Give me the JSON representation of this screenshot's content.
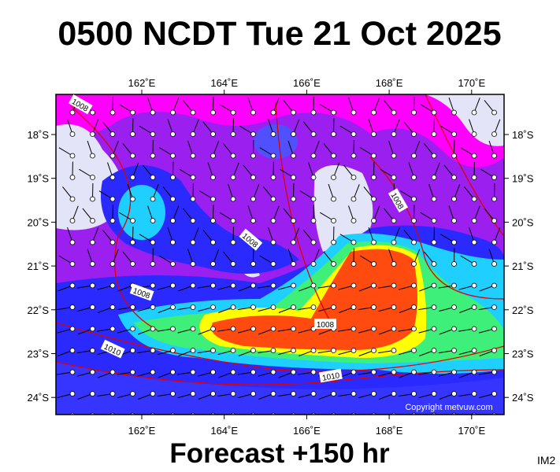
{
  "title": "0500 NCDT Tue 21 Oct 2025",
  "footer": "Forecast +150 hr",
  "image_id": "IM2",
  "copyright": "Copyright metvuw.com",
  "lon_labels": [
    "162˚E",
    "164˚E",
    "166˚E",
    "168˚E",
    "170˚E"
  ],
  "lat_labels": [
    "18˚S",
    "19˚S",
    "20˚S",
    "21˚S",
    "22˚S",
    "23˚S",
    "24˚S"
  ],
  "isobar_labels": [
    "1008",
    "1008",
    "1008",
    "1008",
    "1008",
    "1010",
    "1010"
  ]
}
